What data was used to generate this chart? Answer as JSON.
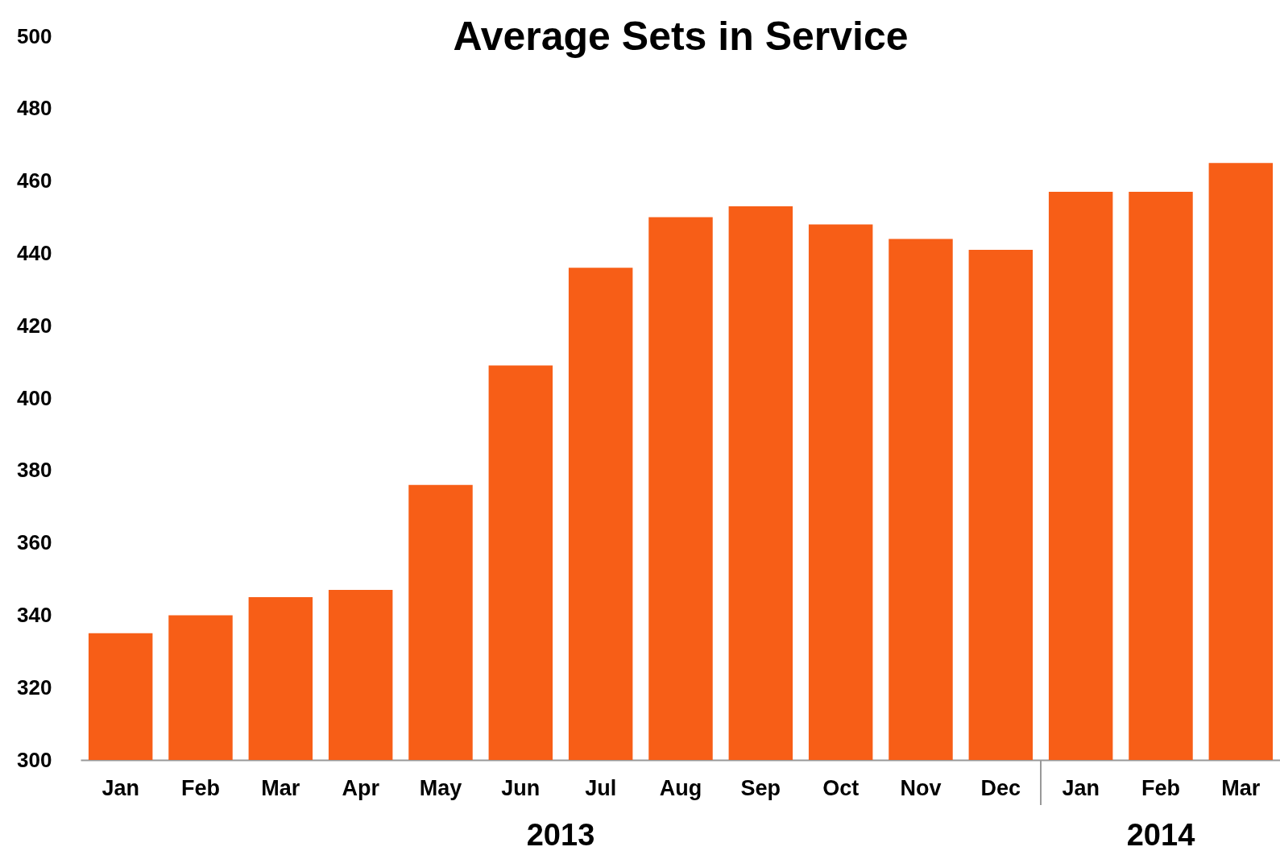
{
  "chart_data": {
    "type": "bar",
    "title": "Average Sets in Service",
    "categories": [
      "Jan",
      "Feb",
      "Mar",
      "Apr",
      "May",
      "Jun",
      "Jul",
      "Aug",
      "Sep",
      "Oct",
      "Nov",
      "Dec",
      "Jan",
      "Feb",
      "Mar"
    ],
    "values": [
      335,
      340,
      345,
      347,
      376,
      409,
      436,
      450,
      453,
      448,
      444,
      441,
      457,
      457,
      465
    ],
    "color": "#f75e17",
    "ylim": [
      300,
      500
    ],
    "yticks": [
      300,
      320,
      340,
      360,
      380,
      400,
      420,
      440,
      460,
      480,
      500
    ],
    "grid": false,
    "annotations": [
      "2013",
      "2014"
    ]
  }
}
